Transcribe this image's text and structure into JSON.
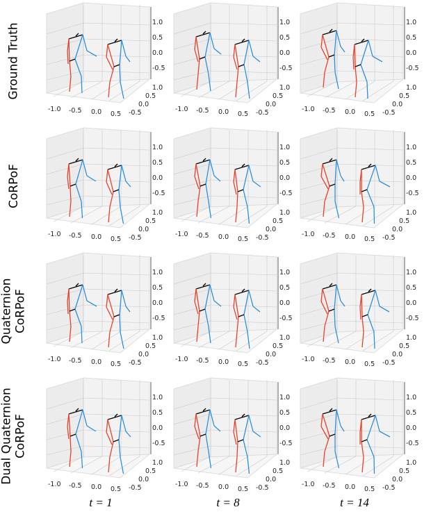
{
  "rows": [
    {
      "label": "Ground Truth"
    },
    {
      "label": "CoRPoF"
    },
    {
      "label": "Quaternion\nCoRPoF"
    },
    {
      "label": "Dual Quaternion\nCoRPoF"
    }
  ],
  "columns": [
    {
      "label": "t = 1"
    },
    {
      "label": "t = 8"
    },
    {
      "label": "t = 14"
    }
  ],
  "axes": {
    "x_ticks": [
      "-1.0",
      "-0.5",
      "0.0",
      "0.5"
    ],
    "y_ticks": [
      "1.0",
      "0.5",
      "0.0",
      "-0.5"
    ],
    "z_ticks": [
      "1.0",
      "0.5",
      "0.0",
      "-0.5"
    ]
  },
  "colors": {
    "left_limbs": "#e8402a",
    "right_limbs": "#2e8fdc",
    "torso": "#000000",
    "pane": "#f2f2f2",
    "grid": "#c8c8c8"
  }
}
